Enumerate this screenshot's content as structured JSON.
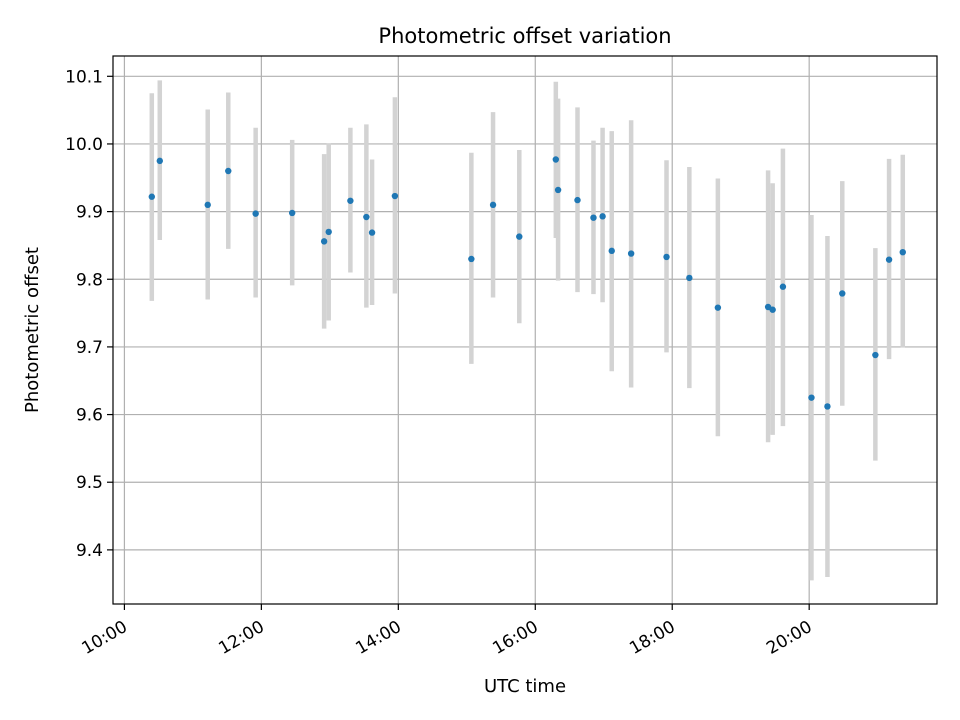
{
  "chart_data": {
    "type": "scatter",
    "title": "Photometric offset variation",
    "xlabel": "UTC time",
    "ylabel": "Photometric offset",
    "x_unit": "UTC hours",
    "xlim": [
      "9:50",
      "21:52"
    ],
    "ylim": [
      9.32,
      10.13
    ],
    "x_ticks": [
      "10:00",
      "12:00",
      "14:00",
      "16:00",
      "18:00",
      "20:00"
    ],
    "y_ticks": [
      "9.4",
      "9.5",
      "9.6",
      "9.7",
      "9.8",
      "9.9",
      "10.0",
      "10.1"
    ],
    "grid": true,
    "colors": {
      "point": "#1f77b4",
      "errorbar": "#d3d3d3",
      "grid": "#b0b0b0"
    },
    "series": [
      {
        "points": [
          {
            "x": "10:24",
            "y": 9.922,
            "lo": 9.768,
            "hi": 10.075
          },
          {
            "x": "10:31",
            "y": 9.975,
            "lo": 9.858,
            "hi": 10.094
          },
          {
            "x": "11:13",
            "y": 9.91,
            "lo": 9.77,
            "hi": 10.051
          },
          {
            "x": "11:31",
            "y": 9.96,
            "lo": 9.845,
            "hi": 10.076
          },
          {
            "x": "11:55",
            "y": 9.897,
            "lo": 9.773,
            "hi": 10.024
          },
          {
            "x": "12:27",
            "y": 9.898,
            "lo": 9.791,
            "hi": 10.006
          },
          {
            "x": "12:55",
            "y": 9.856,
            "lo": 9.727,
            "hi": 9.985
          },
          {
            "x": "12:59",
            "y": 9.87,
            "lo": 9.739,
            "hi": 10.001
          },
          {
            "x": "13:18",
            "y": 9.916,
            "lo": 9.81,
            "hi": 10.024
          },
          {
            "x": "13:32",
            "y": 9.892,
            "lo": 9.758,
            "hi": 10.029
          },
          {
            "x": "13:37",
            "y": 9.869,
            "lo": 9.762,
            "hi": 9.977
          },
          {
            "x": "13:57",
            "y": 9.923,
            "lo": 9.779,
            "hi": 10.069
          },
          {
            "x": "15:04",
            "y": 9.83,
            "lo": 9.675,
            "hi": 9.987
          },
          {
            "x": "15:23",
            "y": 9.91,
            "lo": 9.773,
            "hi": 10.047
          },
          {
            "x": "15:46",
            "y": 9.863,
            "lo": 9.735,
            "hi": 9.991
          },
          {
            "x": "16:18",
            "y": 9.977,
            "lo": 9.861,
            "hi": 10.092
          },
          {
            "x": "16:20",
            "y": 9.932,
            "lo": 9.798,
            "hi": 10.067
          },
          {
            "x": "16:37",
            "y": 9.917,
            "lo": 9.781,
            "hi": 10.054
          },
          {
            "x": "16:51",
            "y": 9.891,
            "lo": 9.778,
            "hi": 10.005
          },
          {
            "x": "16:59",
            "y": 9.893,
            "lo": 9.766,
            "hi": 10.024
          },
          {
            "x": "17:07",
            "y": 9.842,
            "lo": 9.664,
            "hi": 10.019
          },
          {
            "x": "17:24",
            "y": 9.838,
            "lo": 9.64,
            "hi": 10.035
          },
          {
            "x": "17:55",
            "y": 9.833,
            "lo": 9.692,
            "hi": 9.976
          },
          {
            "x": "18:15",
            "y": 9.802,
            "lo": 9.639,
            "hi": 9.966
          },
          {
            "x": "18:40",
            "y": 9.758,
            "lo": 9.568,
            "hi": 9.949
          },
          {
            "x": "19:24",
            "y": 9.759,
            "lo": 9.559,
            "hi": 9.961
          },
          {
            "x": "19:28",
            "y": 9.755,
            "lo": 9.57,
            "hi": 9.942
          },
          {
            "x": "19:37",
            "y": 9.789,
            "lo": 9.583,
            "hi": 9.993
          },
          {
            "x": "20:02",
            "y": 9.625,
            "lo": 9.355,
            "hi": 9.895
          },
          {
            "x": "20:16",
            "y": 9.612,
            "lo": 9.36,
            "hi": 9.864
          },
          {
            "x": "20:29",
            "y": 9.779,
            "lo": 9.613,
            "hi": 9.945
          },
          {
            "x": "20:58",
            "y": 9.688,
            "lo": 9.532,
            "hi": 9.846
          },
          {
            "x": "21:10",
            "y": 9.829,
            "lo": 9.682,
            "hi": 9.978
          },
          {
            "x": "21:22",
            "y": 9.84,
            "lo": 9.699,
            "hi": 9.984
          }
        ]
      }
    ]
  }
}
